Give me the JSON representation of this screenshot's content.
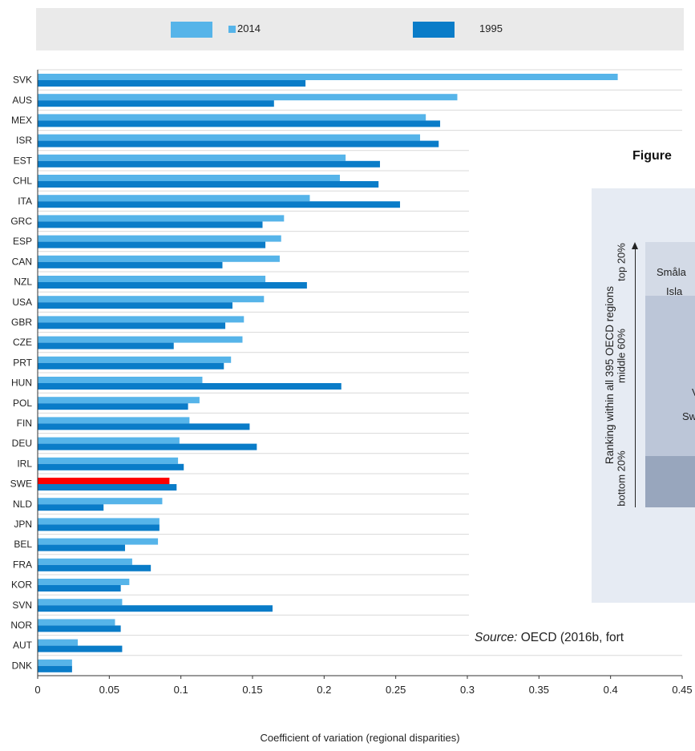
{
  "chart_data": {
    "type": "bar",
    "orientation": "horizontal",
    "categories": [
      "SVK",
      "AUS",
      "MEX",
      "ISR",
      "EST",
      "CHL",
      "ITA",
      "GRC",
      "ESP",
      "CAN",
      "NZL",
      "USA",
      "GBR",
      "CZE",
      "PRT",
      "HUN",
      "POL",
      "FIN",
      "DEU",
      "IRL",
      "SWE",
      "NLD",
      "JPN",
      "BEL",
      "FRA",
      "KOR",
      "SVN",
      "NOR",
      "AUT",
      "DNK"
    ],
    "series": [
      {
        "name": "2014",
        "color": "#56b4e9",
        "highlight": {
          "SWE": "#ff0000"
        },
        "values": [
          0.405,
          0.293,
          0.271,
          0.267,
          0.215,
          0.211,
          0.19,
          0.172,
          0.17,
          0.169,
          0.159,
          0.158,
          0.144,
          0.143,
          0.135,
          0.115,
          0.113,
          0.106,
          0.099,
          0.098,
          0.092,
          0.087,
          0.085,
          0.084,
          0.066,
          0.064,
          0.059,
          0.054,
          0.028,
          0.024
        ]
      },
      {
        "name": "1995",
        "color": "#0a7cc8",
        "values": [
          0.187,
          0.165,
          0.281,
          0.28,
          0.239,
          0.238,
          0.253,
          0.157,
          0.159,
          0.129,
          0.188,
          0.136,
          0.131,
          0.095,
          0.13,
          0.212,
          0.105,
          0.148,
          0.153,
          0.102,
          0.097,
          0.046,
          0.085,
          0.061,
          0.079,
          0.058,
          0.164,
          0.058,
          0.059,
          0.024
        ]
      }
    ],
    "xlabel": "Coefficient of variation (regional disparities)",
    "xlim": [
      0,
      0.45
    ],
    "xticks": [
      "0",
      "0.05",
      "0.1",
      "0.15",
      "0.2",
      "0.25",
      "0.3",
      "0.35",
      "0.4",
      "0.45"
    ],
    "legend": [
      "2014",
      "1995"
    ],
    "legend_position": "top",
    "grid": true
  },
  "legend": {
    "item_2014": "2014",
    "item_1995": "1995"
  },
  "overlay": {
    "title": "Figure",
    "ylabel_line1": "Ranking within all 395 OECD regions",
    "top_label": "top 20%",
    "middle_label": "middle 60%",
    "bottom_label": "bottom 20%",
    "cell_1": "Småla",
    "cell_2": "Isla",
    "cell_3": "V",
    "cell_4": "Sw",
    "source_label": "Source:",
    "source_text": " OECD (2016b, fort"
  }
}
